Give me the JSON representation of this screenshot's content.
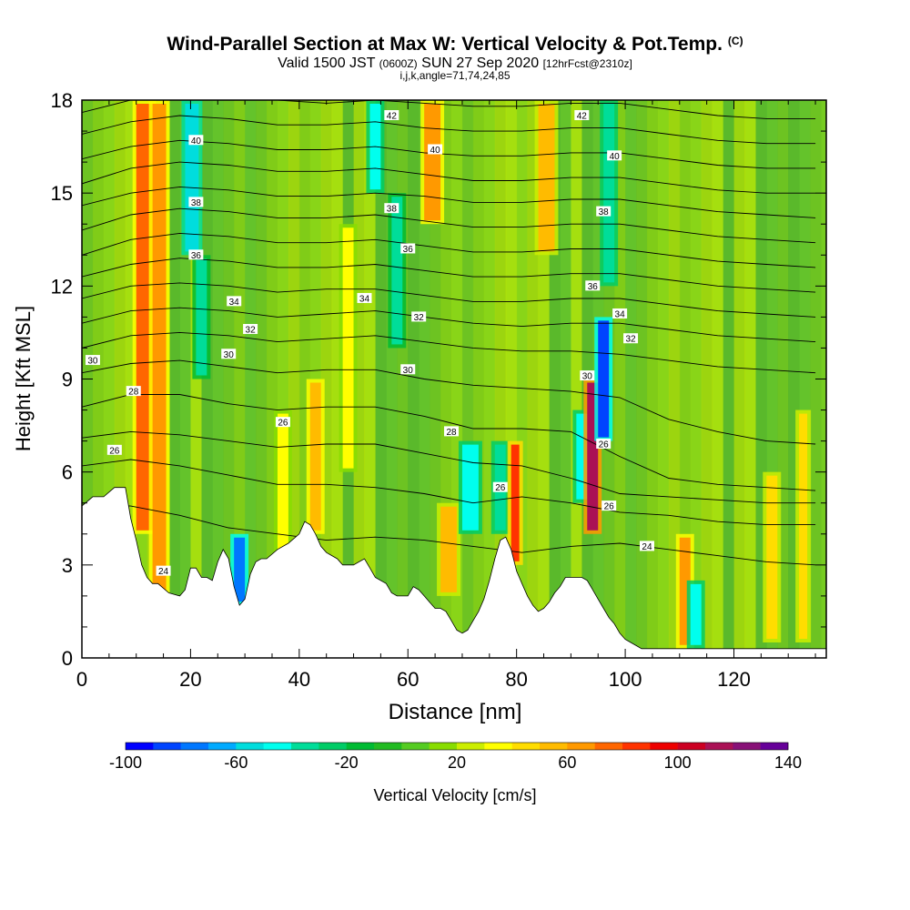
{
  "title": {
    "main": "Wind-Parallel Section at Max W: Vertical Velocity & Pot.Temp.",
    "copyright": "(C)",
    "valid_prefix": "Valid 1500 JST",
    "valid_utc": "(0600Z)",
    "valid_date": "SUN 27 Sep 2020",
    "forecast": "[12hrFcst@2310z]",
    "indices": "i,j,k,angle=71,74,24,85"
  },
  "chart_data": {
    "type": "heatmap",
    "xlabel": "Distance [nm]",
    "ylabel": "Height [Kft MSL]",
    "xlim": [
      0,
      137
    ],
    "ylim": [
      0,
      18
    ],
    "xticks": [
      0,
      20,
      40,
      60,
      80,
      100,
      120
    ],
    "yticks": [
      0,
      3,
      6,
      9,
      12,
      15,
      18
    ],
    "colorbar": {
      "label": "Vertical Velocity [cm/s]",
      "range": [
        -100,
        140
      ],
      "step": 10,
      "tick_labels": [
        -100,
        -60,
        -20,
        20,
        60,
        100,
        140
      ],
      "colors": [
        "#0000ff",
        "#0044ff",
        "#0077ff",
        "#00aaff",
        "#00dddd",
        "#00ffee",
        "#00dd99",
        "#00cc66",
        "#00bb33",
        "#22bb22",
        "#55cc22",
        "#88dd00",
        "#ccee00",
        "#ffff00",
        "#ffdd00",
        "#ffbb00",
        "#ff9900",
        "#ff6600",
        "#ff3300",
        "#ee0000",
        "#cc0022",
        "#aa1155",
        "#881177",
        "#660099"
      ]
    },
    "terrain_kft": [
      [
        0,
        4.9
      ],
      [
        2,
        5.2
      ],
      [
        4,
        5.2
      ],
      [
        6,
        5.5
      ],
      [
        8,
        5.5
      ],
      [
        9,
        4.5
      ],
      [
        10,
        3.8
      ],
      [
        11,
        3.0
      ],
      [
        12,
        2.6
      ],
      [
        13,
        2.4
      ],
      [
        14,
        2.4
      ],
      [
        16,
        2.1
      ],
      [
        18,
        2.0
      ],
      [
        19,
        2.2
      ],
      [
        20,
        2.9
      ],
      [
        21,
        2.9
      ],
      [
        22,
        2.6
      ],
      [
        23,
        2.6
      ],
      [
        24,
        2.5
      ],
      [
        25,
        3.1
      ],
      [
        26,
        3.5
      ],
      [
        27,
        3.2
      ],
      [
        28,
        2.3
      ],
      [
        29,
        1.7
      ],
      [
        30,
        1.9
      ],
      [
        31,
        2.7
      ],
      [
        32,
        3.1
      ],
      [
        33,
        3.2
      ],
      [
        34,
        3.2
      ],
      [
        36,
        3.5
      ],
      [
        38,
        3.7
      ],
      [
        40,
        4.0
      ],
      [
        41,
        4.4
      ],
      [
        42,
        4.3
      ],
      [
        43,
        4.0
      ],
      [
        44,
        3.6
      ],
      [
        45,
        3.4
      ],
      [
        46,
        3.3
      ],
      [
        47,
        3.2
      ],
      [
        48,
        3.0
      ],
      [
        50,
        3.0
      ],
      [
        51,
        3.1
      ],
      [
        52,
        3.2
      ],
      [
        53,
        2.9
      ],
      [
        54,
        2.6
      ],
      [
        56,
        2.4
      ],
      [
        57,
        2.1
      ],
      [
        58,
        2.0
      ],
      [
        60,
        2.0
      ],
      [
        61,
        2.3
      ],
      [
        62,
        2.2
      ],
      [
        63,
        2.0
      ],
      [
        64,
        1.8
      ],
      [
        65,
        1.6
      ],
      [
        66,
        1.6
      ],
      [
        67,
        1.5
      ],
      [
        68,
        1.2
      ],
      [
        69,
        0.9
      ],
      [
        70,
        0.8
      ],
      [
        71,
        0.9
      ],
      [
        72,
        1.2
      ],
      [
        73,
        1.5
      ],
      [
        74,
        1.9
      ],
      [
        75,
        2.5
      ],
      [
        76,
        3.2
      ],
      [
        77,
        3.8
      ],
      [
        78,
        3.9
      ],
      [
        79,
        3.5
      ],
      [
        80,
        2.8
      ],
      [
        81,
        2.4
      ],
      [
        82,
        2.0
      ],
      [
        83,
        1.7
      ],
      [
        84,
        1.5
      ],
      [
        85,
        1.6
      ],
      [
        86,
        1.8
      ],
      [
        87,
        2.1
      ],
      [
        88,
        2.3
      ],
      [
        89,
        2.6
      ],
      [
        90,
        2.6
      ],
      [
        91,
        2.6
      ],
      [
        92,
        2.6
      ],
      [
        93,
        2.5
      ],
      [
        94,
        2.2
      ],
      [
        95,
        1.9
      ],
      [
        96,
        1.6
      ],
      [
        97,
        1.3
      ],
      [
        98,
        1.1
      ],
      [
        99,
        0.8
      ],
      [
        100,
        0.6
      ],
      [
        101,
        0.5
      ],
      [
        102,
        0.4
      ],
      [
        103,
        0.3
      ],
      [
        137,
        0.3
      ]
    ],
    "theta_contours_kft": [
      [
        5.0,
        4.9,
        4.6,
        4.2,
        4.0,
        3.8,
        3.9,
        3.8,
        3.6,
        3.4,
        3.6,
        3.7,
        3.5,
        3.3,
        3.1,
        3.0
      ],
      [
        6.2,
        6.4,
        6.2,
        5.9,
        5.6,
        5.6,
        5.5,
        5.3,
        5.0,
        5.2,
        5.0,
        4.7,
        4.6,
        4.4,
        4.3,
        4.3
      ],
      [
        7.1,
        7.3,
        7.2,
        7.0,
        6.8,
        6.9,
        6.9,
        6.6,
        6.3,
        6.2,
        5.8,
        5.3,
        5.2,
        5.1,
        5.0,
        5.0
      ],
      [
        8.1,
        8.5,
        8.5,
        8.2,
        8.0,
        8.1,
        8.1,
        7.8,
        7.4,
        7.4,
        7.3,
        6.5,
        5.8,
        5.6,
        5.5,
        5.4
      ],
      [
        9.2,
        9.5,
        9.6,
        9.4,
        9.2,
        9.3,
        9.3,
        9.0,
        8.8,
        8.7,
        8.6,
        8.4,
        7.7,
        7.3,
        7.0,
        6.9
      ],
      [
        10.0,
        10.4,
        10.5,
        10.4,
        10.2,
        10.3,
        10.4,
        10.2,
        10.0,
        9.9,
        9.9,
        9.8,
        9.6,
        9.4,
        9.3,
        9.2
      ],
      [
        10.8,
        11.2,
        11.3,
        11.2,
        11.0,
        11.1,
        11.2,
        11.0,
        10.8,
        10.7,
        10.8,
        10.8,
        10.6,
        10.4,
        10.3,
        10.2
      ],
      [
        11.6,
        12.0,
        12.1,
        12.0,
        11.8,
        11.9,
        11.9,
        11.7,
        11.5,
        11.5,
        11.6,
        11.6,
        11.4,
        11.2,
        11.1,
        11.0
      ],
      [
        12.3,
        12.7,
        12.9,
        12.8,
        12.6,
        12.6,
        12.7,
        12.5,
        12.3,
        12.3,
        12.4,
        12.4,
        12.2,
        12.0,
        11.9,
        11.8
      ],
      [
        13.0,
        13.5,
        13.7,
        13.6,
        13.4,
        13.4,
        13.5,
        13.3,
        13.1,
        13.1,
        13.2,
        13.2,
        13.0,
        12.8,
        12.7,
        12.6
      ],
      [
        13.8,
        14.3,
        14.5,
        14.4,
        14.2,
        14.2,
        14.3,
        14.1,
        13.9,
        13.9,
        14.0,
        14.0,
        13.8,
        13.6,
        13.5,
        13.4
      ],
      [
        14.6,
        15.0,
        15.2,
        15.1,
        14.9,
        14.9,
        15.0,
        14.9,
        14.7,
        14.7,
        14.8,
        14.8,
        14.6,
        14.4,
        14.3,
        14.2
      ],
      [
        15.3,
        15.8,
        16.0,
        15.9,
        15.7,
        15.7,
        15.8,
        15.6,
        15.4,
        15.4,
        15.5,
        15.5,
        15.3,
        15.1,
        15.0,
        15.0
      ],
      [
        16.1,
        16.5,
        16.7,
        16.6,
        16.4,
        16.4,
        16.5,
        16.3,
        16.2,
        16.2,
        16.3,
        16.3,
        16.1,
        15.9,
        15.8,
        15.8
      ],
      [
        16.9,
        17.3,
        17.5,
        17.4,
        17.2,
        17.2,
        17.3,
        17.1,
        17.0,
        17.0,
        17.1,
        17.1,
        16.9,
        16.7,
        16.6,
        16.6
      ],
      [
        17.6,
        18.0,
        18.2,
        18.1,
        18.0,
        17.9,
        18.0,
        17.9,
        17.8,
        17.8,
        17.9,
        17.9,
        17.7,
        17.5,
        17.4,
        17.4
      ]
    ],
    "theta_contour_labels": [
      {
        "text": "24",
        "x": 15,
        "y": 2.8
      },
      {
        "text": "24",
        "x": 104,
        "y": 3.6
      },
      {
        "text": "26",
        "x": 6,
        "y": 6.7
      },
      {
        "text": "26",
        "x": 77,
        "y": 5.5
      },
      {
        "text": "26",
        "x": 97,
        "y": 4.9
      },
      {
        "text": "26",
        "x": 37,
        "y": 7.6
      },
      {
        "text": "26",
        "x": 96,
        "y": 6.9
      },
      {
        "text": "28",
        "x": 9.5,
        "y": 8.6
      },
      {
        "text": "28",
        "x": 68,
        "y": 7.3
      },
      {
        "text": "30",
        "x": 2,
        "y": 9.6
      },
      {
        "text": "30",
        "x": 27,
        "y": 9.8
      },
      {
        "text": "30",
        "x": 60,
        "y": 9.3
      },
      {
        "text": "30",
        "x": 93,
        "y": 9.1
      },
      {
        "text": "32",
        "x": 31,
        "y": 10.6
      },
      {
        "text": "32",
        "x": 62,
        "y": 11.0
      },
      {
        "text": "32",
        "x": 101,
        "y": 10.3
      },
      {
        "text": "34",
        "x": 28,
        "y": 11.5
      },
      {
        "text": "34",
        "x": 52,
        "y": 11.6
      },
      {
        "text": "34",
        "x": 99,
        "y": 11.1
      },
      {
        "text": "36",
        "x": 21,
        "y": 13.0
      },
      {
        "text": "36",
        "x": 60,
        "y": 13.2
      },
      {
        "text": "36",
        "x": 94,
        "y": 12.0
      },
      {
        "text": "38",
        "x": 21,
        "y": 14.7
      },
      {
        "text": "38",
        "x": 57,
        "y": 14.5
      },
      {
        "text": "38",
        "x": 96,
        "y": 14.4
      },
      {
        "text": "40",
        "x": 21,
        "y": 16.7
      },
      {
        "text": "40",
        "x": 65,
        "y": 16.4
      },
      {
        "text": "40",
        "x": 98,
        "y": 16.2
      },
      {
        "text": "42",
        "x": 57,
        "y": 17.5
      },
      {
        "text": "42",
        "x": 92,
        "y": 17.5
      }
    ],
    "velocity_bands": [
      {
        "x": 10,
        "w": 3,
        "v": 70,
        "top": 18,
        "bottom": 4
      },
      {
        "x": 13,
        "w": 2.5,
        "v": 60,
        "top": 18,
        "bottom": 2
      },
      {
        "x": 19,
        "w": 2.5,
        "v": -55,
        "top": 18,
        "bottom": 13
      },
      {
        "x": 21,
        "w": 2,
        "v": -35,
        "top": 13,
        "bottom": 9
      },
      {
        "x": 28,
        "w": 2,
        "v": -80,
        "top": 4,
        "bottom": 1.7
      },
      {
        "x": 36,
        "w": 2,
        "v": 30,
        "top": 8,
        "bottom": 3
      },
      {
        "x": 42,
        "w": 2,
        "v": 55,
        "top": 9,
        "bottom": 4
      },
      {
        "x": 48,
        "w": 2,
        "v": 35,
        "top": 14,
        "bottom": 6
      },
      {
        "x": 53,
        "w": 2,
        "v": -50,
        "top": 18,
        "bottom": 15
      },
      {
        "x": 57,
        "w": 2,
        "v": -35,
        "top": 15,
        "bottom": 10
      },
      {
        "x": 63,
        "w": 3,
        "v": 65,
        "top": 18,
        "bottom": 14
      },
      {
        "x": 66,
        "w": 3,
        "v": 50,
        "top": 5,
        "bottom": 2
      },
      {
        "x": 70,
        "w": 3,
        "v": -50,
        "top": 7,
        "bottom": 4
      },
      {
        "x": 76,
        "w": 2,
        "v": -40,
        "top": 7,
        "bottom": 4
      },
      {
        "x": 79,
        "w": 1.5,
        "v": 80,
        "top": 7,
        "bottom": 3
      },
      {
        "x": 84,
        "w": 3,
        "v": 50,
        "top": 18,
        "bottom": 13
      },
      {
        "x": 91,
        "w": 2,
        "v": -45,
        "top": 8,
        "bottom": 5
      },
      {
        "x": 93,
        "w": 2,
        "v": 110,
        "top": 9,
        "bottom": 4
      },
      {
        "x": 95,
        "w": 2,
        "v": -85,
        "top": 11,
        "bottom": 7
      },
      {
        "x": 96,
        "w": 2,
        "v": -40,
        "top": 18,
        "bottom": 12
      },
      {
        "x": 110,
        "w": 2,
        "v": 65,
        "top": 4,
        "bottom": 0.3
      },
      {
        "x": 112,
        "w": 2,
        "v": -45,
        "top": 2.5,
        "bottom": 0.3
      },
      {
        "x": 126,
        "w": 2,
        "v": 40,
        "top": 6,
        "bottom": 0.5
      },
      {
        "x": 132,
        "w": 1.5,
        "v": 40,
        "top": 8,
        "bottom": 0.5
      }
    ]
  }
}
